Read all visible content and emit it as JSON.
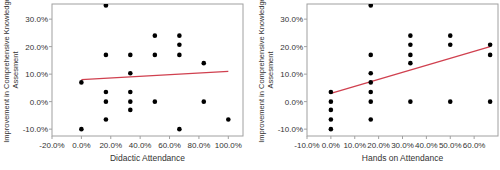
{
  "chart_data": [
    {
      "type": "scatter",
      "x_label": "Didactic Attendance",
      "y_label": "Improvement in Comprehensive Knowledge Assesment",
      "x": [
        0,
        0,
        16.7,
        16.7,
        16.7,
        16.7,
        16.7,
        33.3,
        33.3,
        33.3,
        33.3,
        33.3,
        50,
        50,
        50,
        66.7,
        66.7,
        66.7,
        66.7,
        83.3,
        83.3,
        100
      ],
      "values": [
        7,
        -10,
        35,
        17,
        3.5,
        0,
        -6.5,
        17,
        10.3,
        3.5,
        0,
        -3,
        24,
        17,
        0,
        24,
        20.7,
        17,
        -10,
        14,
        0,
        -6.5
      ],
      "color": "#000000",
      "trendline": {
        "x": [
          0,
          100
        ],
        "values": [
          8,
          11
        ],
        "color": "#d0404f"
      },
      "xlim": [
        -20,
        110
      ],
      "ylim": [
        -12.5,
        35.5
      ],
      "xticks": [
        {
          "value": -20,
          "label": "-20.0%"
        },
        {
          "value": 0,
          "label": "0.0%"
        },
        {
          "value": 20,
          "label": "20.0%"
        },
        {
          "value": 40,
          "label": "40.0%"
        },
        {
          "value": 60,
          "label": "60.0%"
        },
        {
          "value": 80,
          "label": "80.0%"
        },
        {
          "value": 100,
          "label": "100.0%"
        }
      ],
      "yticks": [
        {
          "value": -10,
          "label": "-10.0%"
        },
        {
          "value": 0,
          "label": "0.0%"
        },
        {
          "value": 10,
          "label": "10.0%"
        },
        {
          "value": 20,
          "label": "20.0%"
        },
        {
          "value": 30,
          "label": "30.0%"
        }
      ],
      "grid": false
    },
    {
      "type": "scatter",
      "x_label": "Hands on Attendance",
      "y_label": "Improvement in Comprehensive Knowledge Assesment",
      "x": [
        0,
        0,
        0,
        0,
        0,
        16.7,
        16.7,
        16.7,
        16.7,
        16.7,
        16.7,
        16.7,
        33.3,
        33.3,
        33.3,
        33.3,
        33.3,
        50,
        50,
        50,
        66.7,
        66.7,
        66.7
      ],
      "values": [
        3.5,
        0,
        -3,
        -6.5,
        -10,
        35,
        17,
        10.3,
        7,
        3.5,
        0,
        -6.5,
        24,
        20.7,
        17,
        14,
        0,
        24,
        20.7,
        0,
        20.7,
        17,
        0
      ],
      "color": "#000000",
      "trendline": {
        "x": [
          0,
          66.7
        ],
        "values": [
          3,
          20
        ],
        "color": "#d0404f"
      },
      "xlim": [
        -10,
        70
      ],
      "ylim": [
        -12.5,
        35.5
      ],
      "xticks": [
        {
          "value": -10,
          "label": "-10.0%"
        },
        {
          "value": 0,
          "label": "0.0%"
        },
        {
          "value": 10,
          "label": "10.0%"
        },
        {
          "value": 20,
          "label": "20.0%"
        },
        {
          "value": 30,
          "label": "30.0%"
        },
        {
          "value": 40,
          "label": "40.0%"
        },
        {
          "value": 50,
          "label": "50.0%"
        },
        {
          "value": 60,
          "label": "60.0%"
        }
      ],
      "yticks": [
        {
          "value": -10,
          "label": "-10.0%"
        },
        {
          "value": 0,
          "label": "0.0%"
        },
        {
          "value": 10,
          "label": "10.0%"
        },
        {
          "value": 20,
          "label": "20.0%"
        },
        {
          "value": 30,
          "label": "30.0%"
        }
      ],
      "grid": false
    }
  ]
}
